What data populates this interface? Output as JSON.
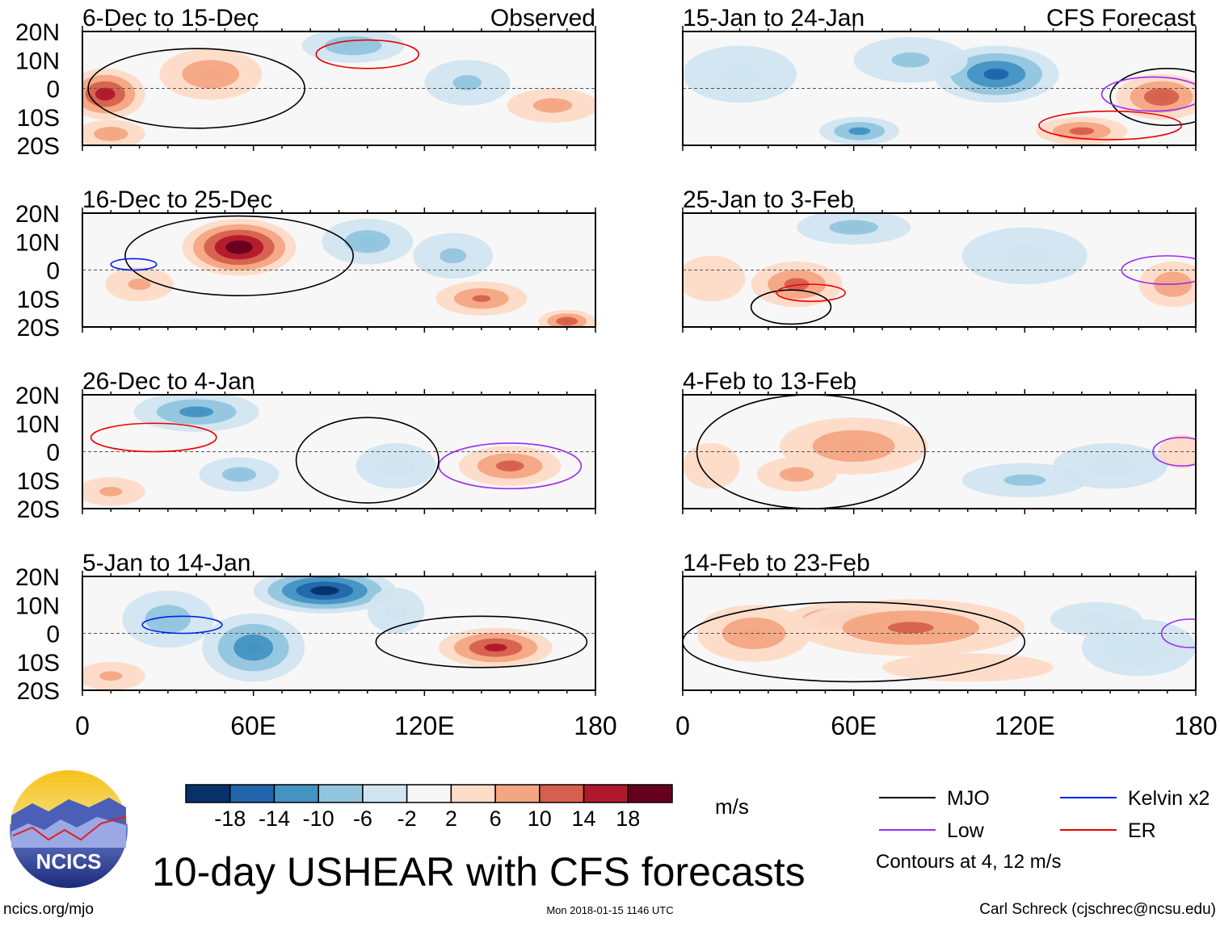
{
  "chart_data": {
    "type": "heatmap",
    "title": "10-day USHEAR with CFS forecasts",
    "units": "m/s",
    "lat_ticks": [
      "20N",
      "10N",
      "0",
      "10S",
      "20S"
    ],
    "lon_ticks": [
      "0",
      "60E",
      "120E",
      "180"
    ],
    "lat_range": [
      -20,
      20
    ],
    "lon_range": [
      0,
      180
    ],
    "colorbar": {
      "levels": [
        -18,
        -14,
        -10,
        -6,
        -2,
        2,
        6,
        10,
        14,
        18
      ],
      "colors": [
        "#08306b",
        "#2166ac",
        "#4393c3",
        "#92c5de",
        "#d1e5f0",
        "#f7f7f7",
        "#fddbc7",
        "#f4a582",
        "#d6604d",
        "#b2182b",
        "#67001f"
      ]
    },
    "column_labels": {
      "observed": "Observed",
      "forecast": "CFS Forecast"
    },
    "panels": [
      {
        "period": "6-Dec to 15-Dec",
        "col": 0,
        "row": 0,
        "blobs": [
          [
            8,
            -2,
            16,
            14,
            9
          ],
          [
            45,
            5,
            9,
            18,
            9
          ],
          [
            95,
            15,
            -9,
            18,
            6
          ],
          [
            135,
            2,
            -6,
            15,
            8
          ],
          [
            165,
            -6,
            7,
            16,
            6
          ],
          [
            10,
            -16,
            8,
            12,
            5
          ]
        ],
        "contours": [
          [
            "MJO",
            40,
            0,
            38,
            14
          ],
          [
            "ER",
            100,
            12,
            18,
            5
          ]
        ]
      },
      {
        "period": "16-Dec to 25-Dec",
        "col": 0,
        "row": 1,
        "blobs": [
          [
            55,
            8,
            21,
            20,
            10
          ],
          [
            140,
            -10,
            10,
            16,
            6
          ],
          [
            170,
            -18,
            13,
            10,
            4
          ],
          [
            100,
            10,
            -8,
            16,
            8
          ],
          [
            130,
            5,
            -6,
            14,
            8
          ],
          [
            20,
            -5,
            6,
            12,
            6
          ]
        ],
        "contours": [
          [
            "MJO",
            55,
            5,
            40,
            14
          ],
          [
            "Kelvin x2",
            18,
            2,
            8,
            2
          ]
        ]
      },
      {
        "period": "26-Dec to 4-Jan",
        "col": 0,
        "row": 2,
        "blobs": [
          [
            40,
            14,
            -11,
            22,
            7
          ],
          [
            55,
            -8,
            -7,
            14,
            6
          ],
          [
            150,
            -5,
            11,
            18,
            7
          ],
          [
            110,
            -5,
            -4,
            14,
            8
          ],
          [
            10,
            -14,
            6,
            12,
            5
          ]
        ],
        "contours": [
          [
            "ER",
            25,
            5,
            22,
            5
          ],
          [
            "Low",
            150,
            -5,
            25,
            8
          ],
          [
            "MJO",
            100,
            -3,
            25,
            15
          ]
        ]
      },
      {
        "period": "5-Jan to 14-Jan",
        "col": 0,
        "row": 3,
        "blobs": [
          [
            85,
            15,
            -20,
            25,
            8
          ],
          [
            60,
            -5,
            -13,
            18,
            12
          ],
          [
            30,
            5,
            -8,
            16,
            10
          ],
          [
            145,
            -5,
            15,
            20,
            7
          ],
          [
            10,
            -15,
            6,
            12,
            5
          ],
          [
            110,
            8,
            -5,
            10,
            8
          ]
        ],
        "contours": [
          [
            "MJO",
            140,
            -3,
            37,
            9
          ],
          [
            "Kelvin x2",
            35,
            3,
            14,
            3
          ]
        ]
      },
      {
        "period": "15-Jan to 24-Jan",
        "col": 1,
        "row": 0,
        "blobs": [
          [
            110,
            5,
            -15,
            22,
            10
          ],
          [
            62,
            -15,
            -11,
            14,
            5
          ],
          [
            168,
            -3,
            13,
            16,
            8
          ],
          [
            140,
            -15,
            11,
            16,
            5
          ],
          [
            20,
            5,
            -5,
            20,
            10
          ],
          [
            80,
            10,
            -6,
            20,
            8
          ]
        ],
        "contours": [
          [
            "MJO",
            170,
            -3,
            20,
            10
          ],
          [
            "ER",
            150,
            -13,
            25,
            5
          ],
          [
            "Low",
            165,
            -2,
            18,
            6
          ]
        ]
      },
      {
        "period": "25-Jan to 3-Feb",
        "col": 1,
        "row": 1,
        "blobs": [
          [
            40,
            -5,
            11,
            16,
            8
          ],
          [
            60,
            15,
            -7,
            20,
            6
          ],
          [
            172,
            -5,
            9,
            12,
            8
          ],
          [
            120,
            5,
            -5,
            22,
            10
          ],
          [
            10,
            -3,
            5,
            12,
            8
          ]
        ],
        "contours": [
          [
            "MJO",
            38,
            -13,
            14,
            6
          ],
          [
            "ER",
            45,
            -8,
            12,
            3
          ],
          [
            "Low",
            170,
            0,
            16,
            5
          ]
        ]
      },
      {
        "period": "4-Feb to 13-Feb",
        "col": 1,
        "row": 2,
        "blobs": [
          [
            60,
            2,
            9,
            26,
            10
          ],
          [
            40,
            -8,
            7,
            14,
            6
          ],
          [
            120,
            -10,
            -6,
            22,
            6
          ],
          [
            150,
            -5,
            -4,
            20,
            8
          ],
          [
            175,
            0,
            5,
            8,
            6
          ],
          [
            10,
            -5,
            5,
            10,
            8
          ]
        ],
        "contours": [
          [
            "MJO",
            45,
            0,
            40,
            20
          ],
          [
            "Low",
            175,
            0,
            10,
            5
          ]
        ]
      },
      {
        "period": "14-Feb to 23-Feb",
        "col": 1,
        "row": 3,
        "blobs": [
          [
            60,
            5,
            16,
            24,
            6
          ],
          [
            80,
            2,
            10,
            40,
            10
          ],
          [
            25,
            0,
            9,
            20,
            10
          ],
          [
            145,
            5,
            -5,
            16,
            6
          ],
          [
            160,
            -5,
            -3,
            20,
            10
          ],
          [
            100,
            -12,
            4,
            30,
            5
          ]
        ],
        "contours": [
          [
            "MJO",
            60,
            -3,
            60,
            14
          ],
          [
            "Low",
            178,
            0,
            10,
            5
          ]
        ]
      }
    ],
    "legend": [
      {
        "name": "MJO",
        "color": "#000000"
      },
      {
        "name": "Kelvin x2",
        "color": "#0022ee"
      },
      {
        "name": "Low",
        "color": "#9a2cf0"
      },
      {
        "name": "ER",
        "color": "#ee0000"
      }
    ],
    "contour_note": "Contours at 4, 12 m/s"
  },
  "footer": {
    "logo_text": "NCICS",
    "url": "ncics.org/mjo",
    "timestamp": "Mon 2018-01-15 1146 UTC",
    "credit": "Carl Schreck (cjschrec@ncsu.edu)"
  }
}
